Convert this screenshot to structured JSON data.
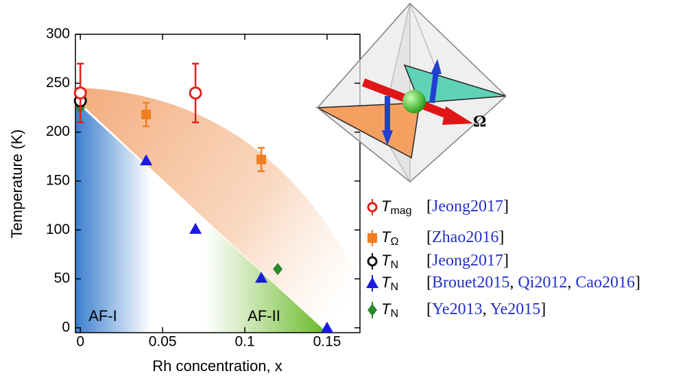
{
  "chart_data": {
    "type": "scatter",
    "x_label": "Rh concentration, x",
    "y_label": "Temperature (K)",
    "xlim": [
      -0.003,
      0.17
    ],
    "ylim": [
      -5,
      300
    ],
    "xticks": [
      0,
      0.05,
      0.1,
      0.15
    ],
    "yticks": [
      0,
      50,
      100,
      150,
      200,
      250,
      300
    ],
    "annotations": [
      "AF-I",
      "AF-II"
    ],
    "illustration_label": "Ω",
    "series": [
      {
        "name": "T",
        "subscript": "mag",
        "ref": "[Jeong2017]",
        "marker": "circle-open",
        "color": "#e0211b",
        "x": [
          0,
          0.07
        ],
        "values": [
          240,
          240
        ],
        "errors": [
          30,
          30
        ]
      },
      {
        "name": "T",
        "subscript": "Ω",
        "ref": "[Zhao2016]",
        "marker": "square",
        "color": "#f07d1f",
        "x": [
          0.04,
          0.11
        ],
        "values": [
          218,
          172
        ],
        "errors": [
          12,
          12
        ]
      },
      {
        "name": "T",
        "subscript": "N",
        "ref": "[Jeong2017]",
        "marker": "circle-open",
        "color": "#111111",
        "x": [
          0
        ],
        "values": [
          232
        ],
        "errors": [
          5
        ]
      },
      {
        "name": "T",
        "subscript": "N",
        "ref": "[Brouet2015, Qi2012, Cao2016]",
        "marker": "triangle",
        "color": "#1a1ae0",
        "x": [
          0.04,
          0.07,
          0.11,
          0.15
        ],
        "values": [
          171,
          101,
          51,
          0
        ]
      },
      {
        "name": "T",
        "subscript": "N",
        "ref": "[Ye2013, Ye2015]",
        "marker": "diamond",
        "color": "#2a8a2a",
        "x": [
          0,
          0.12
        ],
        "values": [
          225,
          60
        ]
      }
    ]
  }
}
